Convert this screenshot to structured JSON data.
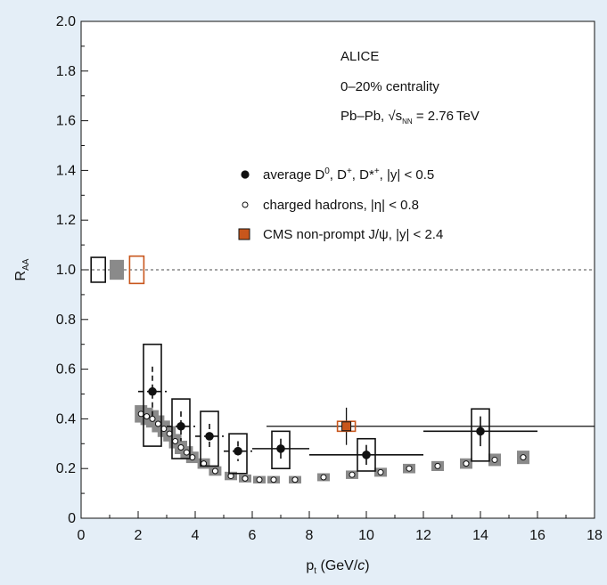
{
  "chart_data": {
    "type": "scatter",
    "xlabel": {
      "main": "p",
      "sub": "t",
      "rest": " (GeV/",
      "unit": "c",
      "close": ")"
    },
    "ylabel": {
      "main": "R",
      "sub": "AA"
    },
    "xlim": [
      0,
      18
    ],
    "ylim": [
      0,
      2.0
    ],
    "xticks": [
      "0",
      "2",
      "4",
      "6",
      "8",
      "10",
      "12",
      "14",
      "16",
      "18"
    ],
    "yticks": [
      "0",
      "0.2",
      "0.4",
      "0.6",
      "0.8",
      "1.0",
      "1.2",
      "1.4",
      "1.6",
      "1.8",
      "2.0"
    ],
    "reference_line": 1.0,
    "annotations": {
      "line1": "ALICE",
      "line2": "0–20% centrality",
      "line3": {
        "pre": "Pb–Pb, √s",
        "sub": "NN",
        "post": " = 2.76 TeV"
      }
    },
    "legend": [
      {
        "pre": "average D",
        "sup1": "0",
        "mid1": ", D",
        "sup2": "+",
        "mid2": ", D*",
        "sup3": "+",
        "post": ", |y| < 0.5"
      },
      {
        "text": "charged hadrons, |η| < 0.8"
      },
      {
        "text": "CMS non-prompt J/ψ, |y| < 2.4"
      }
    ],
    "series": [
      {
        "marker": "filled-circle",
        "points": [
          {
            "x": 2.5,
            "y": 0.51,
            "xlo": 2.0,
            "xhi": 3.0,
            "stat": 0.1,
            "sys_lo": 0.29,
            "sys_hi": 0.7
          },
          {
            "x": 3.5,
            "y": 0.37,
            "xlo": 3.0,
            "xhi": 4.0,
            "stat": 0.06,
            "sys_lo": 0.24,
            "sys_hi": 0.48
          },
          {
            "x": 4.5,
            "y": 0.33,
            "xlo": 4.0,
            "xhi": 5.0,
            "stat": 0.05,
            "sys_lo": 0.21,
            "sys_hi": 0.43
          },
          {
            "x": 5.5,
            "y": 0.27,
            "xlo": 5.0,
            "xhi": 6.0,
            "stat": 0.04,
            "sys_lo": 0.18,
            "sys_hi": 0.34
          },
          {
            "x": 7.0,
            "y": 0.28,
            "xlo": 6.0,
            "xhi": 8.0,
            "stat": 0.04,
            "sys_lo": 0.2,
            "sys_hi": 0.35
          },
          {
            "x": 10.0,
            "y": 0.255,
            "xlo": 8.0,
            "xhi": 12.0,
            "stat": 0.04,
            "sys_lo": 0.19,
            "sys_hi": 0.32
          },
          {
            "x": 14.0,
            "y": 0.35,
            "xlo": 12.0,
            "xhi": 16.0,
            "stat": 0.06,
            "sys_lo": 0.23,
            "sys_hi": 0.44
          }
        ]
      },
      {
        "marker": "open-circle",
        "sys_color": "#8a8a8a",
        "points": [
          {
            "x": 2.1,
            "y": 0.42,
            "sys": 0.035
          },
          {
            "x": 2.3,
            "y": 0.41,
            "sys": 0.035
          },
          {
            "x": 2.5,
            "y": 0.4,
            "sys": 0.035
          },
          {
            "x": 2.7,
            "y": 0.38,
            "sys": 0.034
          },
          {
            "x": 2.9,
            "y": 0.36,
            "sys": 0.033
          },
          {
            "x": 3.1,
            "y": 0.34,
            "sys": 0.031
          },
          {
            "x": 3.3,
            "y": 0.31,
            "sys": 0.029
          },
          {
            "x": 3.5,
            "y": 0.285,
            "sys": 0.027
          },
          {
            "x": 3.7,
            "y": 0.265,
            "sys": 0.025
          },
          {
            "x": 3.9,
            "y": 0.245,
            "sys": 0.023
          },
          {
            "x": 4.3,
            "y": 0.22,
            "sys": 0.021
          },
          {
            "x": 4.7,
            "y": 0.19,
            "sys": 0.019
          },
          {
            "x": 5.25,
            "y": 0.17,
            "sys": 0.017
          },
          {
            "x": 5.75,
            "y": 0.16,
            "sys": 0.016
          },
          {
            "x": 6.25,
            "y": 0.155,
            "sys": 0.015
          },
          {
            "x": 6.75,
            "y": 0.155,
            "sys": 0.015
          },
          {
            "x": 7.5,
            "y": 0.155,
            "sys": 0.015
          },
          {
            "x": 8.5,
            "y": 0.165,
            "sys": 0.016
          },
          {
            "x": 9.5,
            "y": 0.175,
            "sys": 0.017
          },
          {
            "x": 10.5,
            "y": 0.185,
            "sys": 0.018
          },
          {
            "x": 11.5,
            "y": 0.2,
            "sys": 0.019
          },
          {
            "x": 12.5,
            "y": 0.21,
            "sys": 0.02
          },
          {
            "x": 13.5,
            "y": 0.22,
            "sys": 0.021
          },
          {
            "x": 14.5,
            "y": 0.235,
            "sys": 0.025
          },
          {
            "x": 15.5,
            "y": 0.245,
            "sys": 0.027
          }
        ]
      },
      {
        "marker": "filled-square",
        "color": "#c8561c",
        "points": [
          {
            "x": 9.3,
            "y": 0.37,
            "xlo": 6.5,
            "xhi": 18.0,
            "stat": 0.075,
            "sys": 0.02
          }
        ]
      }
    ],
    "normalization_boxes": [
      {
        "x": 0.6,
        "y": 1.0,
        "half": 0.05,
        "style": "open",
        "color": "#111111"
      },
      {
        "x": 1.25,
        "y": 1.0,
        "half": 0.04,
        "style": "filled",
        "color": "#8a8a8a"
      },
      {
        "x": 1.95,
        "y": 1.0,
        "half": 0.055,
        "style": "open",
        "color": "#c8561c"
      }
    ]
  }
}
